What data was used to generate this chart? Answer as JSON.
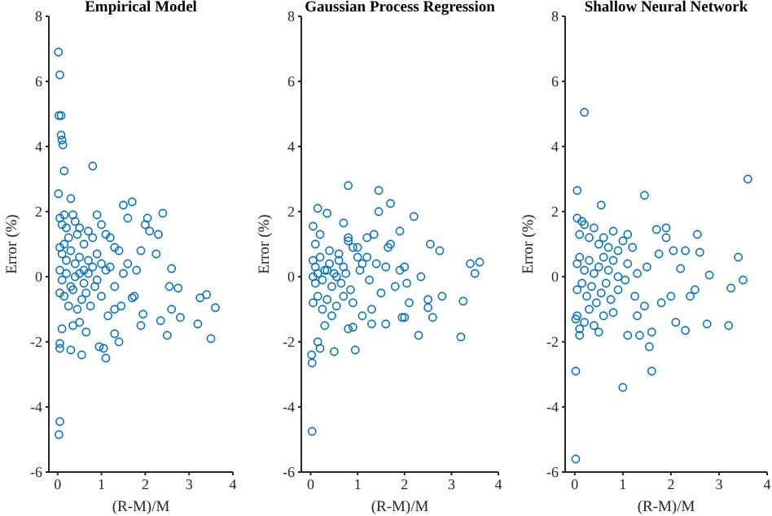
{
  "chart_data": [
    {
      "type": "scatter",
      "title": "Empirical Model",
      "xlabel": "(R-M)/M",
      "ylabel": "Error (%)",
      "color": "#0072bd",
      "marker": "circle",
      "xlim": [
        -0.2,
        4
      ],
      "ylim": [
        -6,
        8
      ],
      "xticks": [
        0,
        1,
        2,
        3,
        4
      ],
      "yticks": [
        -6,
        -4,
        -2,
        0,
        2,
        4,
        6,
        8
      ],
      "x": [
        0.02,
        0.05,
        0.03,
        0.08,
        0.08,
        0.1,
        0.12,
        0.15,
        0.8,
        0.05,
        0.03,
        0.02,
        0.05,
        0.1,
        0.15,
        0.2,
        0.25,
        0.3,
        0.35,
        0.4,
        0.45,
        0.5,
        0.6,
        0.7,
        0.8,
        0.9,
        1.0,
        1.1,
        1.2,
        1.3,
        0.05,
        0.1,
        0.15,
        0.2,
        0.3,
        0.4,
        0.5,
        0.6,
        0.7,
        0.8,
        0.9,
        1.0,
        1.2,
        1.4,
        0.05,
        0.1,
        0.2,
        0.3,
        0.4,
        0.5,
        0.6,
        0.7,
        0.9,
        1.1,
        1.3,
        1.5,
        1.6,
        1.8,
        0.05,
        0.15,
        0.25,
        0.35,
        0.45,
        0.55,
        0.65,
        0.75,
        0.85,
        1.0,
        1.3,
        0.05,
        0.05,
        0.1,
        0.3,
        0.55,
        0.95,
        1.05,
        1.1,
        1.3,
        1.4,
        1.5,
        1.7,
        1.6,
        1.75,
        1.7,
        1.9,
        1.95,
        2.0,
        2.05,
        2.1,
        2.3,
        2.4,
        2.25,
        2.6,
        2.55,
        2.75,
        2.35,
        2.5,
        2.8,
        2.6,
        3.2,
        3.25,
        3.4,
        3.6,
        3.5,
        0.35,
        0.5,
        0.65,
        1.15,
        1.45,
        1.9
      ],
      "values": [
        6.9,
        6.2,
        4.95,
        4.95,
        4.35,
        4.2,
        4.05,
        3.25,
        3.4,
        -4.45,
        -4.85,
        2.55,
        1.8,
        1.6,
        1.9,
        1.5,
        1.2,
        2.4,
        1.9,
        1.7,
        1.3,
        1.5,
        1.0,
        1.4,
        1.2,
        1.9,
        1.6,
        1.3,
        1.2,
        0.9,
        0.9,
        0.7,
        1.0,
        0.5,
        0.8,
        0.4,
        0.6,
        0.2,
        0.5,
        0.3,
        0.7,
        0.4,
        0.3,
        0.8,
        0.2,
        -0.1,
        0.1,
        -0.3,
        0.0,
        0.1,
        -0.2,
        0.1,
        -0.1,
        0.2,
        -0.3,
        0.1,
        0.4,
        0.2,
        -0.5,
        -0.6,
        -0.9,
        -0.4,
        -1.0,
        -0.7,
        -0.5,
        -0.9,
        -0.3,
        -0.6,
        -1.0,
        -2.05,
        -2.2,
        -1.6,
        -2.25,
        -2.4,
        -2.15,
        -2.2,
        -2.5,
        -1.75,
        -2.0,
        2.2,
        2.3,
        1.8,
        -0.6,
        -0.65,
        -1.5,
        -1.15,
        1.6,
        1.8,
        1.4,
        1.3,
        1.95,
        0.7,
        0.25,
        -0.3,
        -0.35,
        -1.35,
        -1.8,
        -1.25,
        -1.0,
        -1.45,
        -0.65,
        -0.55,
        -0.95,
        -1.9,
        -1.5,
        -1.4,
        -1.7,
        -1.2,
        -0.9,
        0.8
      ]
    },
    {
      "type": "scatter",
      "title": "Gaussian Process Regression",
      "xlabel": "(R-M)/M",
      "ylabel": "Error (%)",
      "color": "#0072bd",
      "marker": "circle",
      "xlim": [
        -0.2,
        4
      ],
      "ylim": [
        -6,
        8
      ],
      "xticks": [
        0,
        1,
        2,
        3,
        4
      ],
      "yticks": [
        -6,
        -4,
        -2,
        0,
        2,
        4,
        6,
        8
      ],
      "x": [
        0.03,
        0.8,
        1.45,
        1.7,
        1.45,
        0.35,
        0.15,
        2.2,
        1.9,
        2.55,
        2.75,
        3.6,
        3.4,
        3.5,
        3.25,
        3.2,
        2.8,
        2.6,
        2.3,
        2.5,
        2.5,
        2.35,
        2.1,
        2.0,
        1.95,
        1.6,
        1.3,
        0.95,
        0.5,
        0.02,
        0.03,
        0.15,
        0.2,
        0.9,
        0.8,
        0.05,
        0.1,
        0.2,
        0.3,
        0.4,
        0.5,
        0.6,
        0.7,
        0.8,
        0.9,
        1.0,
        1.1,
        1.2,
        0.05,
        0.1,
        0.15,
        0.25,
        0.35,
        0.45,
        0.55,
        0.65,
        0.75,
        0.85,
        1.05,
        1.25,
        0.05,
        0.15,
        0.25,
        0.35,
        0.45,
        0.55,
        0.7,
        0.9,
        1.1,
        1.3,
        0.1,
        0.2,
        0.4,
        0.6,
        0.8,
        1.0,
        1.2,
        1.4,
        1.6,
        1.8,
        2.0,
        1.5,
        1.7,
        1.9,
        2.05,
        0.05,
        0.3,
        0.7,
        1.35,
        1.65
      ],
      "values": [
        -4.75,
        2.8,
        2.65,
        2.25,
        2.0,
        1.95,
        2.1,
        1.85,
        1.4,
        1.0,
        0.8,
        0.45,
        0.4,
        0.1,
        -0.75,
        -1.85,
        -0.6,
        -1.25,
        -1.8,
        -0.95,
        -0.7,
        0.0,
        -0.8,
        -1.25,
        -1.25,
        -1.45,
        -1.45,
        -2.25,
        -2.3,
        -2.4,
        -2.65,
        -2.0,
        -2.2,
        -1.55,
        -1.6,
        0.5,
        0.3,
        0.6,
        0.2,
        0.4,
        0.1,
        0.5,
        0.3,
        1.2,
        0.9,
        0.6,
        0.4,
        1.2,
        0.0,
        -0.2,
        0.1,
        -0.1,
        0.2,
        -0.3,
        0.0,
        -0.2,
        0.1,
        -0.4,
        0.2,
        -0.1,
        -0.8,
        -0.6,
        -1.0,
        -0.7,
        -1.2,
        -0.9,
        -0.6,
        -0.8,
        -1.2,
        -1.0,
        1.0,
        1.3,
        0.8,
        0.7,
        1.1,
        0.9,
        0.6,
        0.4,
        0.3,
        -0.3,
        0.3,
        -0.5,
        1.0,
        0.2,
        -0.2,
        1.55,
        -1.5,
        1.65,
        1.3,
        0.9
      ]
    },
    {
      "type": "scatter",
      "title": "Shallow Neural Network",
      "xlabel": "(R-M)/M",
      "ylabel": "Error (%)",
      "color": "#0072bd",
      "marker": "circle",
      "xlim": [
        -0.2,
        4
      ],
      "ylim": [
        -6,
        8
      ],
      "xticks": [
        0,
        1,
        2,
        3,
        4
      ],
      "yticks": [
        -6,
        -4,
        -2,
        0,
        2,
        4,
        6,
        8
      ],
      "x": [
        0.02,
        0.2,
        0.02,
        3.6,
        1.45,
        0.05,
        0.55,
        1.6,
        1.0,
        1.55,
        3.4,
        3.5,
        3.2,
        3.25,
        2.75,
        2.8,
        2.55,
        2.6,
        2.3,
        2.3,
        2.1,
        2.2,
        1.9,
        1.7,
        0.05,
        0.1,
        0.15,
        0.2,
        0.3,
        0.4,
        0.5,
        0.6,
        0.7,
        0.8,
        0.9,
        1.0,
        1.1,
        1.2,
        0.05,
        0.1,
        0.2,
        0.3,
        0.4,
        0.5,
        0.6,
        0.7,
        0.8,
        0.9,
        1.1,
        1.3,
        1.5,
        0.05,
        0.15,
        0.25,
        0.35,
        0.45,
        0.55,
        0.65,
        0.75,
        0.9,
        1.05,
        1.25,
        1.45,
        0.05,
        0.1,
        0.2,
        0.3,
        0.4,
        0.5,
        0.6,
        0.8,
        1.1,
        1.3,
        1.6,
        1.8,
        2.0,
        1.9,
        2.05,
        1.75,
        2.4,
        2.5,
        1.35,
        0.02,
        0.1
      ],
      "values": [
        -5.6,
        5.05,
        -2.9,
        3.0,
        2.5,
        2.65,
        2.2,
        -2.9,
        -3.4,
        -2.15,
        0.6,
        -0.1,
        -1.5,
        -0.35,
        -1.45,
        0.05,
        1.3,
        0.75,
        0.8,
        -1.65,
        -1.4,
        0.25,
        1.5,
        1.45,
        1.8,
        1.3,
        1.7,
        1.6,
        1.2,
        1.5,
        1.0,
        1.2,
        0.9,
        1.4,
        0.8,
        1.1,
        1.3,
        0.9,
        0.4,
        0.6,
        0.2,
        0.5,
        0.1,
        0.3,
        0.6,
        0.2,
        0.5,
        0.0,
        0.4,
        0.1,
        0.3,
        -0.4,
        -0.2,
        -0.6,
        -0.3,
        -0.8,
        -0.5,
        -0.2,
        -0.7,
        -0.4,
        -0.1,
        -0.6,
        -0.9,
        -1.2,
        -1.6,
        -1.4,
        -1.0,
        -1.5,
        -1.7,
        -1.2,
        -1.1,
        -1.8,
        -1.2,
        -1.7,
        -0.8,
        -0.6,
        1.2,
        0.8,
        0.7,
        -0.6,
        -0.4,
        -1.8,
        -1.3,
        -1.8
      ]
    }
  ]
}
